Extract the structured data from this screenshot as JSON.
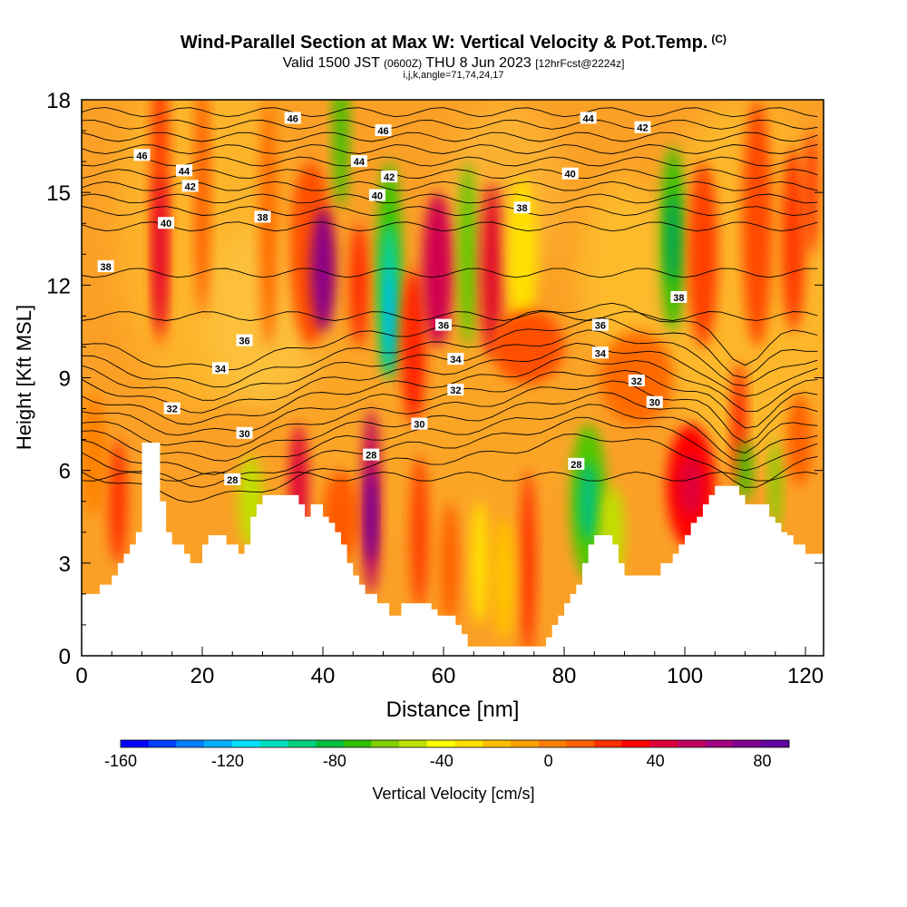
{
  "title": {
    "main": "Wind-Parallel Section at Max W: Vertical Velocity & Pot.Temp.",
    "copyright": "(C)",
    "valid_pre": "Valid 1500 JST",
    "valid_zulu": "(0600Z)",
    "valid_post": "THU 8 Jun 2023",
    "forecast": "[12hrFcst@2224z]",
    "params": "i,j,k,angle=71,74,24,17"
  },
  "chart_data": {
    "type": "heatmap",
    "xlabel": "Distance [nm]",
    "ylabel": "Height [Kft MSL]",
    "xlim": [
      0,
      123
    ],
    "ylim": [
      0,
      18
    ],
    "x_ticks": [
      0,
      20,
      40,
      60,
      80,
      100,
      120
    ],
    "y_ticks": [
      0,
      3,
      6,
      9,
      12,
      15,
      18
    ],
    "colorbar": {
      "label": "Vertical Velocity [cm/s]",
      "range": [
        -160,
        90
      ],
      "ticks": [
        -160,
        -120,
        -80,
        -40,
        0,
        40,
        80
      ],
      "colors": [
        "#0000ff",
        "#0040ff",
        "#0080ff",
        "#00b0ff",
        "#00e0ff",
        "#00e0c0",
        "#00d080",
        "#00c040",
        "#30c000",
        "#80d000",
        "#c0e000",
        "#ffff00",
        "#ffe000",
        "#ffc000",
        "#ffa000",
        "#ff8000",
        "#ff6000",
        "#ff3000",
        "#ff0000",
        "#e0003a",
        "#c00060",
        "#a00080",
        "#800090",
        "#6000a0"
      ]
    },
    "terrain_profile_x": [
      0,
      3,
      5,
      6,
      7,
      8,
      9,
      10,
      12,
      13,
      14,
      15,
      16,
      17,
      18,
      19,
      20,
      21,
      22,
      23,
      24,
      25,
      26,
      27,
      28,
      29,
      30,
      31,
      32,
      33,
      34,
      35,
      36,
      37,
      38,
      39,
      40,
      41,
      42,
      43,
      44,
      45,
      46,
      47,
      48,
      49,
      50,
      51,
      52,
      53,
      54,
      55,
      56,
      57,
      58,
      59,
      60,
      61,
      62,
      63,
      64,
      65,
      66,
      67,
      68,
      69,
      70,
      71,
      72,
      73,
      74,
      75,
      76,
      77,
      78,
      79,
      80,
      81,
      82,
      83,
      84,
      85,
      86,
      87,
      88,
      89,
      90,
      91,
      92,
      93,
      94,
      95,
      96,
      97,
      98,
      99,
      100,
      101,
      102,
      103,
      104,
      105,
      106,
      107,
      108,
      109,
      110,
      111,
      112,
      113,
      114,
      115,
      116,
      117,
      118,
      119,
      120,
      121,
      122,
      123
    ],
    "terrain_profile_kft": [
      2,
      2.3,
      2.6,
      3,
      3.3,
      3.6,
      4,
      6.9,
      6.9,
      5,
      4,
      3.6,
      3.6,
      3.3,
      3,
      3,
      3.6,
      3.9,
      3.9,
      3.9,
      3.6,
      3.6,
      3.3,
      3.6,
      4.5,
      4.9,
      5.2,
      5.2,
      5.2,
      5.2,
      5.2,
      5.2,
      4.9,
      4.5,
      4.9,
      4.9,
      4.5,
      4.3,
      4,
      3.6,
      3,
      2.6,
      2.3,
      2,
      2,
      1.7,
      1.7,
      1.3,
      1.3,
      1.7,
      1.7,
      1.7,
      1.7,
      1.7,
      1.5,
      1.3,
      1.3,
      1.3,
      1,
      0.7,
      0.3,
      0.3,
      0.3,
      0.3,
      0.3,
      0.3,
      0.3,
      0.3,
      0.3,
      0.3,
      0.3,
      0.3,
      0.3,
      0.6,
      1,
      1.3,
      1.7,
      2,
      2.3,
      3,
      3.6,
      3.9,
      3.9,
      3.9,
      3.6,
      3,
      2.6,
      2.6,
      2.6,
      2.6,
      2.6,
      2.6,
      3,
      3,
      3.3,
      3.6,
      3.9,
      4.3,
      4.5,
      4.9,
      5.2,
      5.5,
      5.5,
      5.5,
      5.5,
      5.2,
      4.9,
      4.9,
      4.9,
      4.9,
      4.5,
      4.3,
      4,
      3.9,
      3.6,
      3.6,
      3.3,
      3.3,
      3.3,
      3.3
    ],
    "theta_contour_labels": [
      {
        "text": "46",
        "x": 35,
        "y": 17.4
      },
      {
        "text": "46",
        "x": 10,
        "y": 16.2
      },
      {
        "text": "44",
        "x": 17,
        "y": 15.7
      },
      {
        "text": "42",
        "x": 18,
        "y": 15.2
      },
      {
        "text": "40",
        "x": 14,
        "y": 14.0
      },
      {
        "text": "38",
        "x": 30,
        "y": 14.2
      },
      {
        "text": "38",
        "x": 4,
        "y": 12.6
      },
      {
        "text": "46",
        "x": 50,
        "y": 17.0
      },
      {
        "text": "44",
        "x": 46,
        "y": 16.0
      },
      {
        "text": "42",
        "x": 51,
        "y": 15.5
      },
      {
        "text": "40",
        "x": 49,
        "y": 14.9
      },
      {
        "text": "36",
        "x": 27,
        "y": 10.2
      },
      {
        "text": "34",
        "x": 23,
        "y": 9.3
      },
      {
        "text": "32",
        "x": 15,
        "y": 8.0
      },
      {
        "text": "30",
        "x": 27,
        "y": 7.2
      },
      {
        "text": "28",
        "x": 25,
        "y": 5.7
      },
      {
        "text": "28",
        "x": 48,
        "y": 6.5
      },
      {
        "text": "36",
        "x": 60,
        "y": 10.7
      },
      {
        "text": "34",
        "x": 62,
        "y": 9.6
      },
      {
        "text": "32",
        "x": 62,
        "y": 8.6
      },
      {
        "text": "30",
        "x": 56,
        "y": 7.5
      },
      {
        "text": "44",
        "x": 84,
        "y": 17.4
      },
      {
        "text": "42",
        "x": 93,
        "y": 17.1
      },
      {
        "text": "40",
        "x": 81,
        "y": 15.6
      },
      {
        "text": "38",
        "x": 73,
        "y": 14.5
      },
      {
        "text": "38",
        "x": 99,
        "y": 11.6
      },
      {
        "text": "36",
        "x": 86,
        "y": 10.7
      },
      {
        "text": "34",
        "x": 86,
        "y": 9.8
      },
      {
        "text": "32",
        "x": 92,
        "y": 8.9
      },
      {
        "text": "30",
        "x": 95,
        "y": 8.2
      },
      {
        "text": "28",
        "x": 82,
        "y": 6.2
      }
    ]
  }
}
